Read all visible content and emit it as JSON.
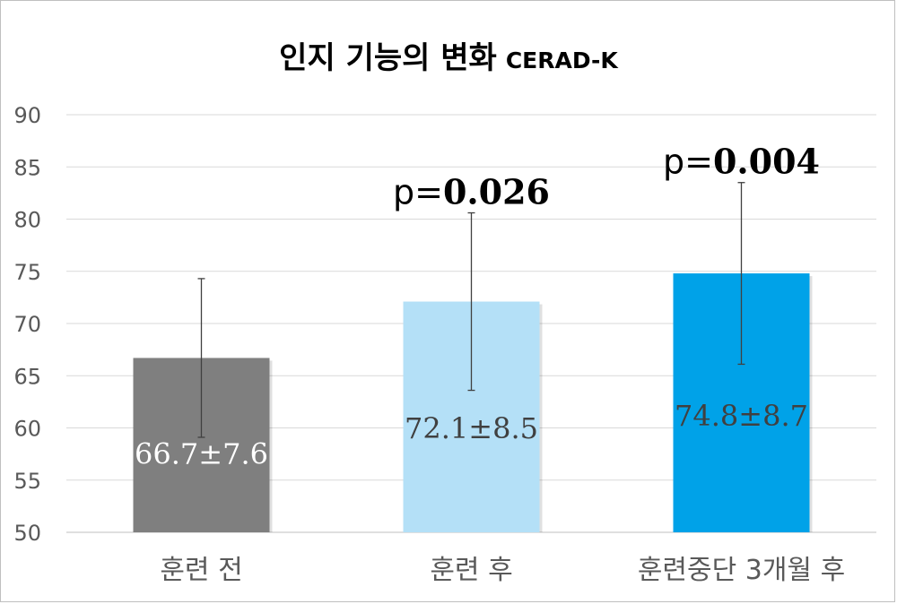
{
  "chart_data": {
    "type": "bar",
    "title": "인지 기능의 변화",
    "subtitle": "CERAD-K",
    "categories": [
      "훈련 전",
      "훈련 후",
      "훈련중단 3개월 후"
    ],
    "values": [
      66.7,
      72.1,
      74.8
    ],
    "errors": [
      7.6,
      8.5,
      8.7
    ],
    "data_labels": [
      "66.7±7.6",
      "72.1±8.5",
      "74.8±8.7"
    ],
    "bar_colors": [
      "#7f7f7f",
      "#b4e0f7",
      "#00a2e8"
    ],
    "label_colors": [
      "#ffffff",
      "#404040",
      "#404040"
    ],
    "annotations": [
      {
        "category_index": 1,
        "prefix": "p=",
        "value": "0.026"
      },
      {
        "category_index": 2,
        "prefix": "p=",
        "value": "0.004"
      }
    ],
    "ylim": [
      50,
      90
    ],
    "yticks": [
      50,
      55,
      60,
      65,
      70,
      75,
      80,
      85,
      90
    ],
    "xlabel": "",
    "ylabel": "",
    "grid": true,
    "legend": "none"
  }
}
